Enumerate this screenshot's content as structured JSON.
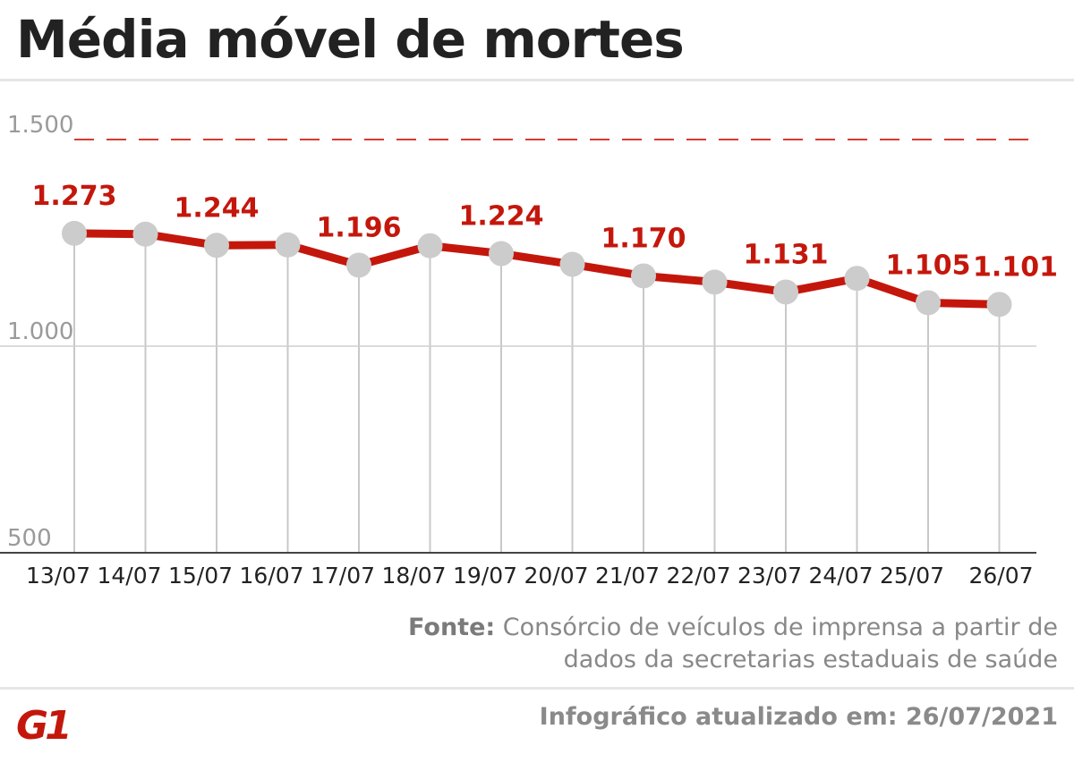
{
  "title": "Média móvel de mortes",
  "source": {
    "label": "Fonte:",
    "text": "Consórcio de veículos de imprensa a partir de dados da secretarias estaduais de saúde"
  },
  "updated": "Infográfico atualizado em: 26/07/2021",
  "logo": "G1",
  "colors": {
    "line": "#c4170c",
    "marker": "#cccccc",
    "label": "#c4170c",
    "dashed_ref": "#d63a2f",
    "grid": "#c8c8c8",
    "axis": "#444444"
  },
  "chart_data": {
    "type": "line",
    "categories": [
      "13/07",
      "14/07",
      "15/07",
      "16/07",
      "17/07",
      "18/07",
      "19/07",
      "20/07",
      "21/07",
      "22/07",
      "23/07",
      "24/07",
      "25/07",
      "26/07"
    ],
    "values": [
      1273,
      1271,
      1244,
      1245,
      1196,
      1243,
      1224,
      1198,
      1170,
      1155,
      1131,
      1164,
      1105,
      1101
    ],
    "data_labels": [
      {
        "index": 0,
        "text": "1.273"
      },
      {
        "index": 2,
        "text": "1.244"
      },
      {
        "index": 4,
        "text": "1.196"
      },
      {
        "index": 6,
        "text": "1.224"
      },
      {
        "index": 8,
        "text": "1.170"
      },
      {
        "index": 10,
        "text": "1.131"
      },
      {
        "index": 12,
        "text": "1.105"
      },
      {
        "index": 13,
        "text": "1.101"
      }
    ],
    "y_ticks": [
      {
        "value": 1500,
        "label": "1.500",
        "style": "dashed"
      },
      {
        "value": 1000,
        "label": "1.000",
        "style": "solid"
      },
      {
        "value": 500,
        "label": "500",
        "style": "solid"
      }
    ],
    "ylim": [
      500,
      1500
    ],
    "title": "",
    "xlabel": "",
    "ylabel": "",
    "grid": true,
    "legend": "none"
  }
}
